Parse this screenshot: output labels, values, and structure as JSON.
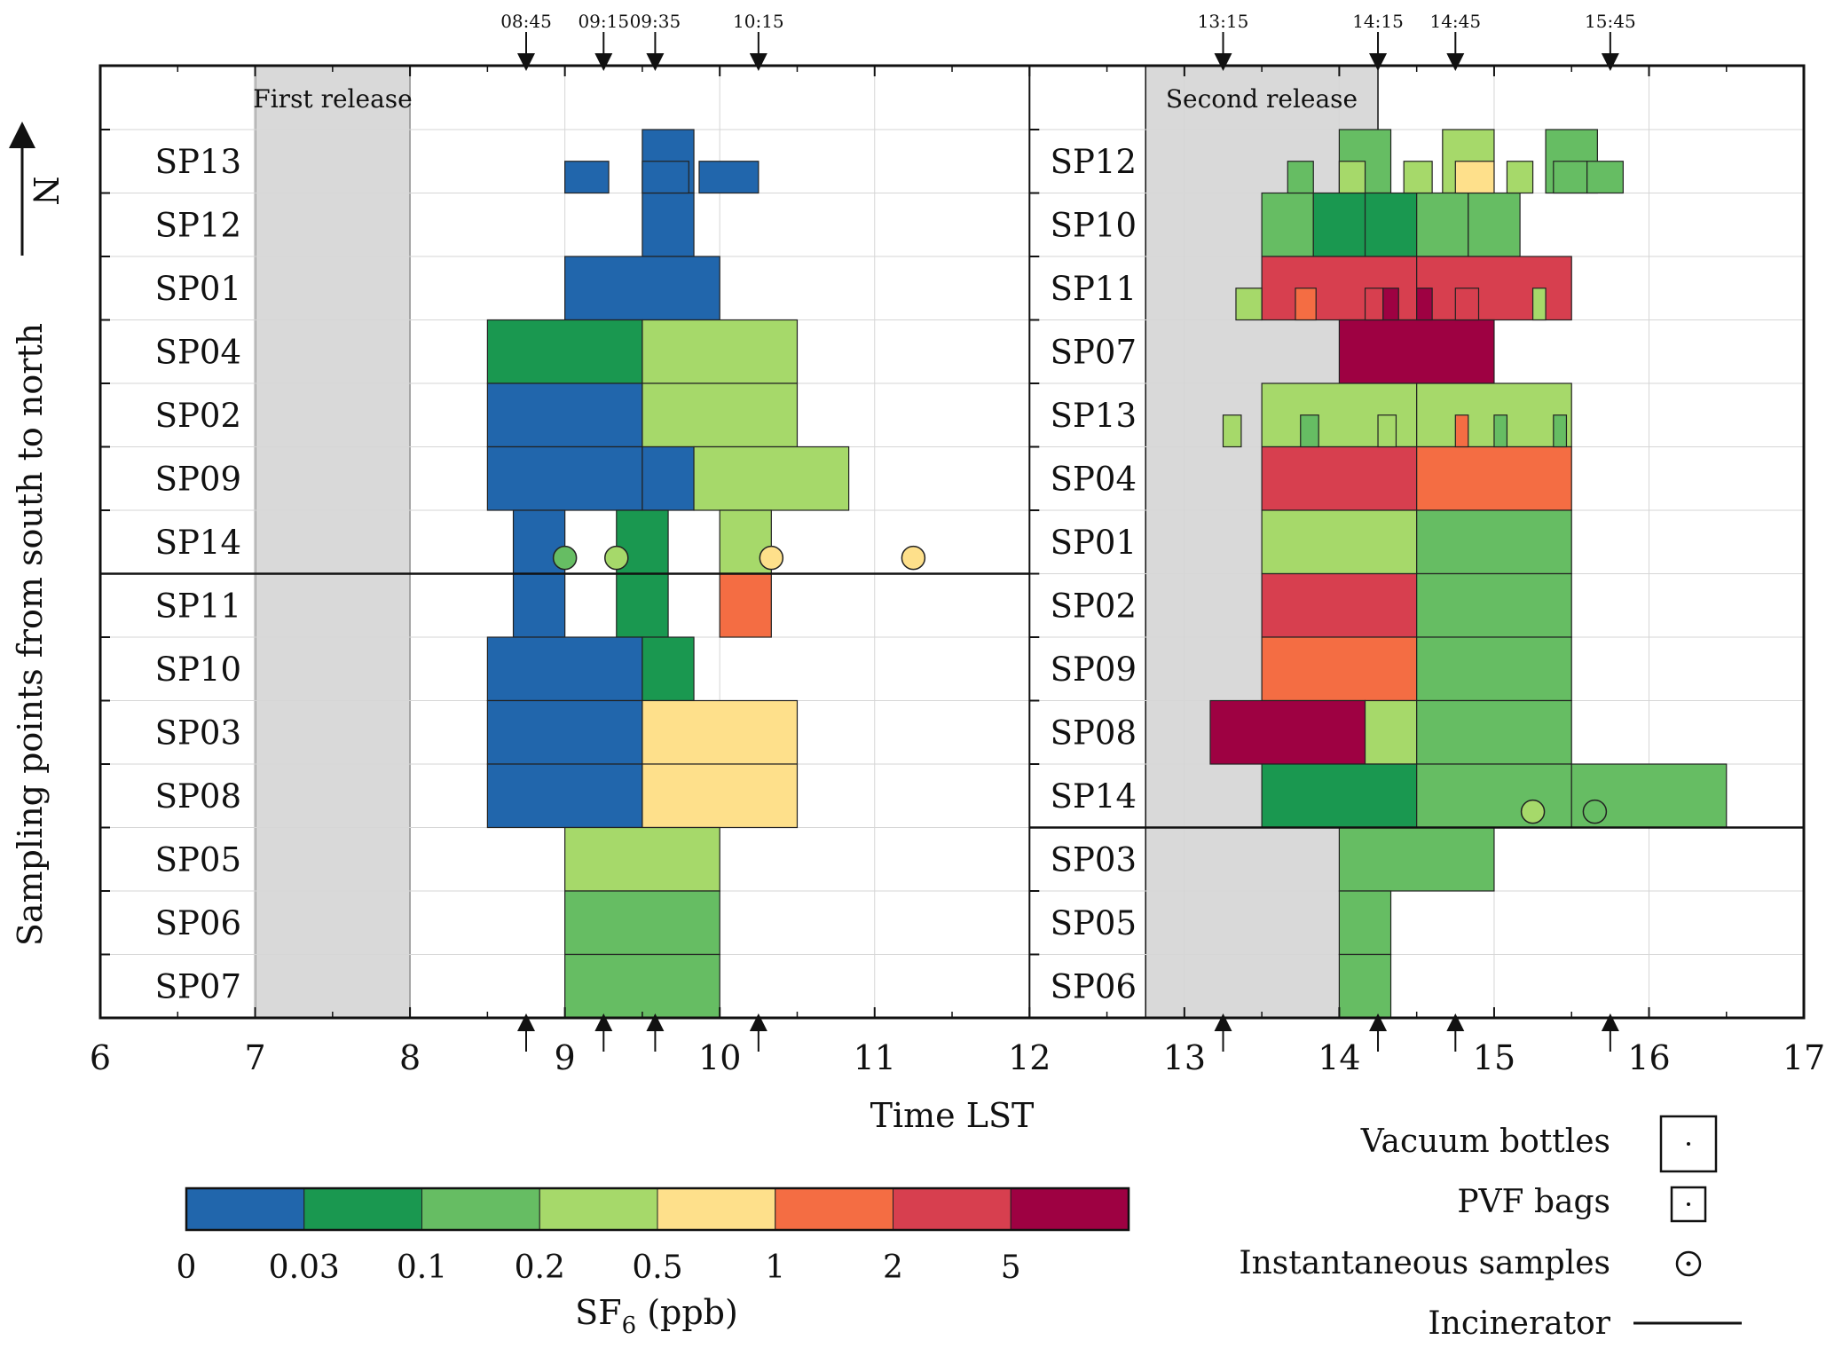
{
  "chart_data": {
    "type": "timeline",
    "xlabel": "Time LST",
    "ylabel": "Sampling points from south to north",
    "north_label": "N",
    "xlim": [
      6,
      17
    ],
    "x_ticks": [
      "6",
      "7",
      "8",
      "9",
      "10",
      "11",
      "12",
      "13",
      "14",
      "15",
      "16",
      "17"
    ],
    "marked_times": [
      {
        "label": "08:45",
        "t": 8.75
      },
      {
        "label": "09:15",
        "t": 9.25
      },
      {
        "label": "09:35",
        "t": 9.583
      },
      {
        "label": "10:15",
        "t": 10.25
      },
      {
        "label": "13:15",
        "t": 13.25
      },
      {
        "label": "14:15",
        "t": 14.25
      },
      {
        "label": "14:45",
        "t": 14.75
      },
      {
        "label": "15:45",
        "t": 15.75
      }
    ],
    "releases": [
      {
        "label": "First release",
        "start": 7,
        "end": 8,
        "to_row": 15
      },
      {
        "label": "Second release",
        "start": 12.75,
        "end": 14.25,
        "to_row": 15
      }
    ],
    "colorbar": {
      "title": "SF",
      "title_sub": "6",
      "title_unit": " (ppb)",
      "tick_labels": [
        "0",
        "0.03",
        "0.1",
        "0.2",
        "0.5",
        "1",
        "2",
        "5"
      ],
      "colors": [
        "#2166ac",
        "#1a9850",
        "#66bd63",
        "#a6d96a",
        "#fee08b",
        "#f46d43",
        "#d73f4f",
        "#9e0142"
      ]
    },
    "legend": {
      "vacuum": "Vacuum bottles",
      "pvf": "PVF bags",
      "instant": "Instantaneous samples",
      "incinerator": "Incinerator"
    },
    "panels": [
      {
        "name": "first-release",
        "x_from": 6,
        "x_to": 12,
        "rows": [
          "SP13",
          "SP12",
          "SP01",
          "SP04",
          "SP02",
          "SP09",
          "SP14",
          "SP11",
          "SP10",
          "SP03",
          "SP08",
          "SP05",
          "SP06",
          "SP07"
        ],
        "incinerator_after_row": 7,
        "vacuum": [
          {
            "row": 1,
            "start": 9.5,
            "end": 9.833,
            "c": 0
          },
          {
            "row": 2,
            "start": 9.5,
            "end": 9.833,
            "c": 0
          },
          {
            "row": 3,
            "start": 9.0,
            "end": 10.0,
            "c": 0
          },
          {
            "row": 4,
            "start": 8.5,
            "end": 9.5,
            "c": 1
          },
          {
            "row": 4,
            "start": 9.5,
            "end": 10.5,
            "c": 3
          },
          {
            "row": 5,
            "start": 8.5,
            "end": 9.5,
            "c": 0
          },
          {
            "row": 5,
            "start": 9.5,
            "end": 10.5,
            "c": 3
          },
          {
            "row": 6,
            "start": 8.5,
            "end": 9.5,
            "c": 0
          },
          {
            "row": 6,
            "start": 9.5,
            "end": 9.833,
            "c": 0
          },
          {
            "row": 6,
            "start": 9.833,
            "end": 10.833,
            "c": 3
          },
          {
            "row": 7,
            "start": 8.667,
            "end": 9.0,
            "c": 0
          },
          {
            "row": 7,
            "start": 9.333,
            "end": 9.667,
            "c": 1
          },
          {
            "row": 7,
            "start": 10.0,
            "end": 10.333,
            "c": 3
          },
          {
            "row": 8,
            "start": 8.667,
            "end": 9.0,
            "c": 0
          },
          {
            "row": 8,
            "start": 9.333,
            "end": 9.667,
            "c": 1
          },
          {
            "row": 8,
            "start": 10.0,
            "end": 10.333,
            "c": 5
          },
          {
            "row": 9,
            "start": 8.5,
            "end": 9.5,
            "c": 0
          },
          {
            "row": 9,
            "start": 9.5,
            "end": 9.833,
            "c": 1
          },
          {
            "row": 10,
            "start": 8.5,
            "end": 9.5,
            "c": 0
          },
          {
            "row": 10,
            "start": 9.5,
            "end": 10.5,
            "c": 4
          },
          {
            "row": 11,
            "start": 8.5,
            "end": 9.5,
            "c": 0
          },
          {
            "row": 11,
            "start": 9.5,
            "end": 10.5,
            "c": 4
          },
          {
            "row": 12,
            "start": 9.0,
            "end": 10.0,
            "c": 3
          },
          {
            "row": 13,
            "start": 9.0,
            "end": 10.0,
            "c": 2
          },
          {
            "row": 14,
            "start": 9.0,
            "end": 10.0,
            "c": 2
          }
        ],
        "pvf": [
          {
            "row": 1,
            "start": 9.0,
            "end": 9.283,
            "c": 0
          },
          {
            "row": 1,
            "start": 9.5,
            "end": 9.8,
            "c": 0
          },
          {
            "row": 1,
            "start": 9.867,
            "end": 10.25,
            "c": 0
          }
        ],
        "instant": [
          {
            "row": 7,
            "t": 9.0,
            "c": 2
          },
          {
            "row": 7,
            "t": 9.333,
            "c": 3
          },
          {
            "row": 7,
            "t": 10.333,
            "c": 4
          },
          {
            "row": 7,
            "t": 11.25,
            "c": 4
          }
        ]
      },
      {
        "name": "second-release",
        "x_from": 12,
        "x_to": 17,
        "rows": [
          "SP12",
          "SP10",
          "SP11",
          "SP07",
          "SP13",
          "SP04",
          "SP01",
          "SP02",
          "SP09",
          "SP08",
          "SP14",
          "SP03",
          "SP05",
          "SP06"
        ],
        "incinerator_after_row": 11,
        "vacuum": [
          {
            "row": 1,
            "start": 14.0,
            "end": 14.333,
            "c": 2
          },
          {
            "row": 1,
            "start": 14.667,
            "end": 15.0,
            "c": 3
          },
          {
            "row": 1,
            "start": 15.333,
            "end": 15.667,
            "c": 2
          },
          {
            "row": 2,
            "start": 13.5,
            "end": 13.833,
            "c": 2
          },
          {
            "row": 2,
            "start": 13.833,
            "end": 14.167,
            "c": 1
          },
          {
            "row": 2,
            "start": 14.167,
            "end": 14.5,
            "c": 1
          },
          {
            "row": 2,
            "start": 14.5,
            "end": 14.833,
            "c": 2
          },
          {
            "row": 2,
            "start": 14.833,
            "end": 15.167,
            "c": 2
          },
          {
            "row": 3,
            "start": 13.5,
            "end": 14.5,
            "c": 6
          },
          {
            "row": 3,
            "start": 14.5,
            "end": 15.5,
            "c": 6
          },
          {
            "row": 4,
            "start": 14.0,
            "end": 15.0,
            "c": 7
          },
          {
            "row": 5,
            "start": 13.5,
            "end": 14.5,
            "c": 3
          },
          {
            "row": 5,
            "start": 14.5,
            "end": 15.5,
            "c": 3
          },
          {
            "row": 6,
            "start": 13.5,
            "end": 14.5,
            "c": 6
          },
          {
            "row": 6,
            "start": 14.5,
            "end": 15.5,
            "c": 5
          },
          {
            "row": 7,
            "start": 13.5,
            "end": 14.5,
            "c": 3
          },
          {
            "row": 7,
            "start": 14.5,
            "end": 15.5,
            "c": 2
          },
          {
            "row": 8,
            "start": 13.5,
            "end": 14.5,
            "c": 6
          },
          {
            "row": 8,
            "start": 14.5,
            "end": 15.5,
            "c": 2
          },
          {
            "row": 9,
            "start": 13.5,
            "end": 14.5,
            "c": 5
          },
          {
            "row": 9,
            "start": 14.5,
            "end": 15.5,
            "c": 2
          },
          {
            "row": 10,
            "start": 13.167,
            "end": 14.167,
            "c": 7
          },
          {
            "row": 10,
            "start": 14.167,
            "end": 14.5,
            "c": 3
          },
          {
            "row": 10,
            "start": 14.5,
            "end": 15.5,
            "c": 2
          },
          {
            "row": 11,
            "start": 13.5,
            "end": 14.5,
            "c": 1
          },
          {
            "row": 11,
            "start": 14.5,
            "end": 15.5,
            "c": 2
          },
          {
            "row": 11,
            "start": 15.5,
            "end": 16.5,
            "c": 2
          },
          {
            "row": 12,
            "start": 14.0,
            "end": 15.0,
            "c": 2
          },
          {
            "row": 13,
            "start": 14.0,
            "end": 14.333,
            "c": 2
          },
          {
            "row": 14,
            "start": 14.0,
            "end": 14.333,
            "c": 2
          }
        ],
        "pvf": [
          {
            "row": 1,
            "start": 13.667,
            "end": 13.833,
            "c": 2
          },
          {
            "row": 1,
            "start": 14.0,
            "end": 14.167,
            "c": 3
          },
          {
            "row": 1,
            "start": 14.417,
            "end": 14.6,
            "c": 3
          },
          {
            "row": 1,
            "start": 14.75,
            "end": 15.0,
            "c": 4
          },
          {
            "row": 1,
            "start": 15.083,
            "end": 15.25,
            "c": 3
          },
          {
            "row": 1,
            "start": 15.383,
            "end": 15.6,
            "c": 2
          },
          {
            "row": 1,
            "start": 15.6,
            "end": 15.833,
            "c": 2
          },
          {
            "row": 3,
            "start": 13.333,
            "end": 13.5,
            "c": 3
          },
          {
            "row": 3,
            "start": 13.717,
            "end": 13.85,
            "c": 5
          },
          {
            "row": 3,
            "start": 14.167,
            "end": 14.283,
            "c": 6
          },
          {
            "row": 3,
            "start": 14.283,
            "end": 14.383,
            "c": 7
          },
          {
            "row": 3,
            "start": 14.5,
            "end": 14.6,
            "c": 7
          },
          {
            "row": 3,
            "start": 14.75,
            "end": 14.9,
            "c": 6
          },
          {
            "row": 3,
            "start": 15.25,
            "end": 15.333,
            "c": 3
          },
          {
            "row": 5,
            "start": 13.25,
            "end": 13.367,
            "c": 3
          },
          {
            "row": 5,
            "start": 13.75,
            "end": 13.867,
            "c": 2
          },
          {
            "row": 5,
            "start": 14.25,
            "end": 14.367,
            "c": 3
          },
          {
            "row": 5,
            "start": 14.75,
            "end": 14.833,
            "c": 5
          },
          {
            "row": 5,
            "start": 15.0,
            "end": 15.083,
            "c": 2
          },
          {
            "row": 5,
            "start": 15.383,
            "end": 15.467,
            "c": 2
          }
        ],
        "instant": [
          {
            "row": 11,
            "t": 15.25,
            "c": 3
          },
          {
            "row": 11,
            "t": 15.65,
            "c": 2
          }
        ]
      }
    ]
  }
}
